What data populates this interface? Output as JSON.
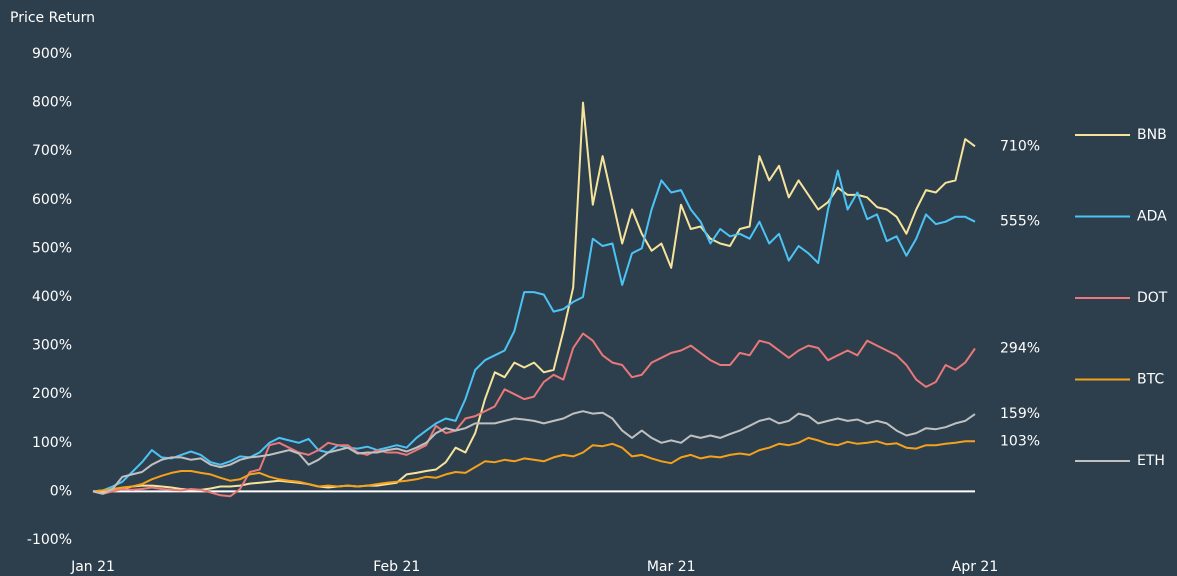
{
  "chart_data": {
    "type": "line",
    "y_label": "Price Return",
    "categories": [
      "Jan 21",
      null,
      null,
      null,
      null,
      null,
      null,
      null,
      null,
      null,
      null,
      null,
      null,
      null,
      null,
      null,
      null,
      null,
      null,
      null,
      null,
      null,
      null,
      null,
      null,
      null,
      null,
      null,
      null,
      null,
      null,
      "Feb 21",
      null,
      null,
      null,
      null,
      null,
      null,
      null,
      null,
      null,
      null,
      null,
      null,
      null,
      null,
      null,
      null,
      null,
      null,
      null,
      null,
      null,
      null,
      null,
      null,
      null,
      null,
      null,
      "Mar 21",
      null,
      null,
      null,
      null,
      null,
      null,
      null,
      null,
      null,
      null,
      null,
      null,
      null,
      null,
      null,
      null,
      null,
      null,
      null,
      null,
      null,
      null,
      null,
      null,
      null,
      null,
      null,
      null,
      null,
      null,
      "Apr 21"
    ],
    "series": [
      {
        "name": "BNB",
        "color": "#f7e49b",
        "end_label": "710%",
        "values": [
          0,
          -2,
          3,
          6,
          10,
          12,
          12,
          10,
          8,
          5,
          3,
          3,
          6,
          10,
          10,
          12,
          16,
          18,
          20,
          22,
          20,
          18,
          15,
          10,
          8,
          10,
          12,
          10,
          12,
          12,
          15,
          18,
          35,
          38,
          42,
          45,
          60,
          90,
          80,
          120,
          190,
          245,
          235,
          265,
          255,
          265,
          245,
          250,
          330,
          420,
          800,
          590,
          690,
          600,
          510,
          580,
          530,
          495,
          510,
          460,
          590,
          540,
          545,
          520,
          510,
          505,
          540,
          545,
          690,
          640,
          670,
          605,
          640,
          610,
          580,
          595,
          625,
          610,
          610,
          605,
          585,
          580,
          565,
          530,
          580,
          620,
          615,
          635,
          640,
          725,
          710
        ]
      },
      {
        "name": "ADA",
        "color": "#4cc3f5",
        "end_label": "555%",
        "values": [
          0,
          2,
          10,
          20,
          40,
          60,
          85,
          70,
          68,
          75,
          82,
          75,
          60,
          55,
          62,
          72,
          70,
          80,
          100,
          110,
          105,
          100,
          108,
          85,
          80,
          95,
          90,
          88,
          92,
          85,
          90,
          95,
          90,
          110,
          125,
          140,
          150,
          145,
          190,
          250,
          270,
          280,
          290,
          330,
          410,
          410,
          405,
          370,
          375,
          390,
          400,
          520,
          505,
          510,
          425,
          490,
          500,
          580,
          640,
          615,
          620,
          580,
          555,
          510,
          540,
          525,
          530,
          520,
          555,
          510,
          530,
          475,
          505,
          490,
          470,
          580,
          660,
          580,
          615,
          560,
          570,
          515,
          525,
          485,
          520,
          570,
          550,
          555,
          565,
          565,
          555
        ]
      },
      {
        "name": "DOT",
        "color": "#e8787a",
        "end_label": "294%",
        "values": [
          0,
          -5,
          0,
          5,
          3,
          5,
          8,
          5,
          3,
          2,
          5,
          3,
          -2,
          -8,
          -10,
          5,
          40,
          45,
          95,
          100,
          90,
          80,
          75,
          85,
          100,
          95,
          95,
          80,
          75,
          85,
          80,
          80,
          75,
          85,
          95,
          135,
          120,
          125,
          150,
          155,
          165,
          175,
          210,
          200,
          190,
          195,
          225,
          240,
          230,
          295,
          325,
          310,
          280,
          265,
          260,
          235,
          240,
          265,
          275,
          285,
          290,
          300,
          285,
          270,
          260,
          260,
          285,
          280,
          310,
          305,
          290,
          275,
          290,
          300,
          295,
          270,
          280,
          290,
          280,
          310,
          300,
          290,
          280,
          260,
          230,
          215,
          225,
          260,
          250,
          265,
          294
        ]
      },
      {
        "name": "BTC",
        "color": "#f5a11c",
        "end_label": "103%",
        "values": [
          0,
          2,
          5,
          8,
          10,
          15,
          25,
          32,
          38,
          42,
          42,
          38,
          35,
          28,
          22,
          25,
          35,
          38,
          30,
          25,
          22,
          20,
          15,
          10,
          12,
          10,
          12,
          10,
          12,
          15,
          18,
          20,
          22,
          25,
          30,
          28,
          35,
          40,
          38,
          50,
          62,
          60,
          65,
          62,
          68,
          65,
          62,
          70,
          75,
          72,
          80,
          95,
          93,
          98,
          90,
          72,
          75,
          68,
          62,
          58,
          70,
          75,
          68,
          72,
          70,
          75,
          78,
          75,
          85,
          90,
          98,
          95,
          100,
          110,
          105,
          98,
          95,
          102,
          98,
          100,
          103,
          97,
          99,
          90,
          88,
          95,
          95,
          98,
          100,
          103,
          103
        ]
      },
      {
        "name": "ETH",
        "color": "#c0c0c0",
        "end_label": "159%",
        "values": [
          0,
          -5,
          5,
          30,
          35,
          40,
          55,
          65,
          70,
          70,
          65,
          68,
          55,
          50,
          55,
          65,
          70,
          72,
          75,
          80,
          85,
          78,
          55,
          65,
          80,
          85,
          90,
          78,
          80,
          80,
          85,
          88,
          82,
          90,
          100,
          120,
          130,
          125,
          130,
          140,
          140,
          140,
          145,
          150,
          148,
          145,
          140,
          145,
          150,
          160,
          165,
          160,
          162,
          150,
          125,
          110,
          125,
          110,
          100,
          105,
          100,
          115,
          110,
          115,
          110,
          118,
          125,
          135,
          145,
          150,
          140,
          145,
          160,
          155,
          140,
          145,
          150,
          145,
          148,
          140,
          145,
          140,
          125,
          115,
          120,
          130,
          128,
          132,
          140,
          145,
          159
        ]
      }
    ],
    "ylim": [
      -100,
      900
    ],
    "yticks": [
      {
        "value": -100,
        "label": "-100%"
      },
      {
        "value": 0,
        "label": "0%"
      },
      {
        "value": 100,
        "label": "100%"
      },
      {
        "value": 200,
        "label": "200%"
      },
      {
        "value": 300,
        "label": "300%"
      },
      {
        "value": 400,
        "label": "400%"
      },
      {
        "value": 500,
        "label": "500%"
      },
      {
        "value": 600,
        "label": "600%"
      },
      {
        "value": 700,
        "label": "700%"
      },
      {
        "value": 800,
        "label": "800%"
      },
      {
        "value": 900,
        "label": "900%"
      }
    ],
    "legend": "right"
  }
}
